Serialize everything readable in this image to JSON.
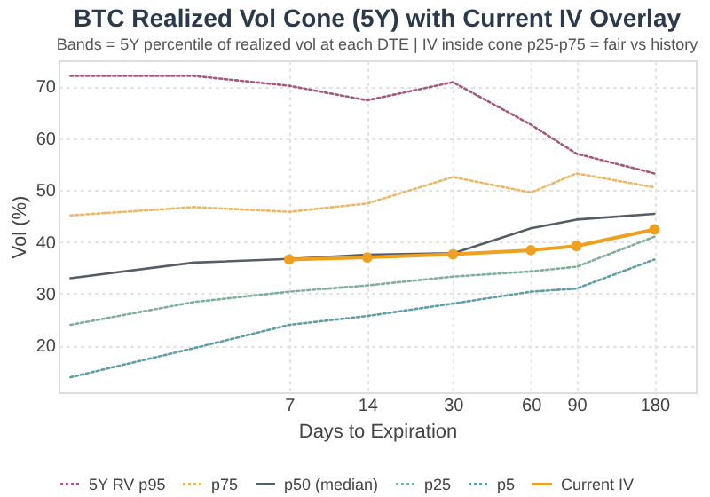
{
  "chart_data": {
    "type": "line",
    "title": "BTC Realized Vol Cone (5Y) with Current IV Overlay",
    "subtitle": "Bands = 5Y percentile of realized vol at each DTE | IV inside cone p25-p75 = fair vs history",
    "xlabel": "Days to Expiration",
    "ylabel": "Vol (%)",
    "log": "x",
    "x": [
      1,
      3,
      7,
      14,
      30,
      60,
      90,
      180
    ],
    "xlim": [
      0.9,
      260
    ],
    "xticks": [
      7,
      14,
      30,
      60,
      90,
      180
    ],
    "ylim": [
      11,
      75
    ],
    "yticks": [
      20,
      30,
      40,
      50,
      60,
      70
    ],
    "grid": true,
    "legend": "bottom",
    "series": [
      {
        "name": "5Y RV p95",
        "color": "#a05a7a",
        "line_style": "dotted",
        "marker": "none",
        "values": [
          72,
          72,
          70.1,
          67.3,
          70.8,
          62.6,
          57.0,
          53.2
        ]
      },
      {
        "name": "p75",
        "color": "#e8b96a",
        "line_style": "dotted",
        "marker": "none",
        "values": [
          45.1,
          46.7,
          45.8,
          47.4,
          52.5,
          49.5,
          53.2,
          50.5
        ]
      },
      {
        "name": "p50 (median)",
        "color": "#555e66",
        "line_style": "solid",
        "marker": "none",
        "values": [
          33.0,
          36.0,
          36.7,
          37.5,
          37.8,
          42.6,
          44.3,
          45.4
        ]
      },
      {
        "name": "p25",
        "color": "#7fae99",
        "line_style": "dotted",
        "marker": "none",
        "values": [
          24.0,
          28.4,
          30.4,
          31.6,
          33.3,
          34.3,
          35.2,
          41.0
        ]
      },
      {
        "name": "p5",
        "color": "#5f9ea8",
        "line_style": "dotted",
        "marker": "none",
        "values": [
          13.9,
          19.5,
          24.0,
          25.7,
          28.1,
          30.4,
          31.0,
          36.6
        ]
      },
      {
        "name": "Current IV",
        "color": "#f0a020",
        "line_style": "solid",
        "marker": "circle",
        "x": [
          7,
          14,
          30,
          60,
          90,
          180
        ],
        "values": [
          36.6,
          37.0,
          37.6,
          38.4,
          39.2,
          42.4
        ]
      }
    ]
  }
}
